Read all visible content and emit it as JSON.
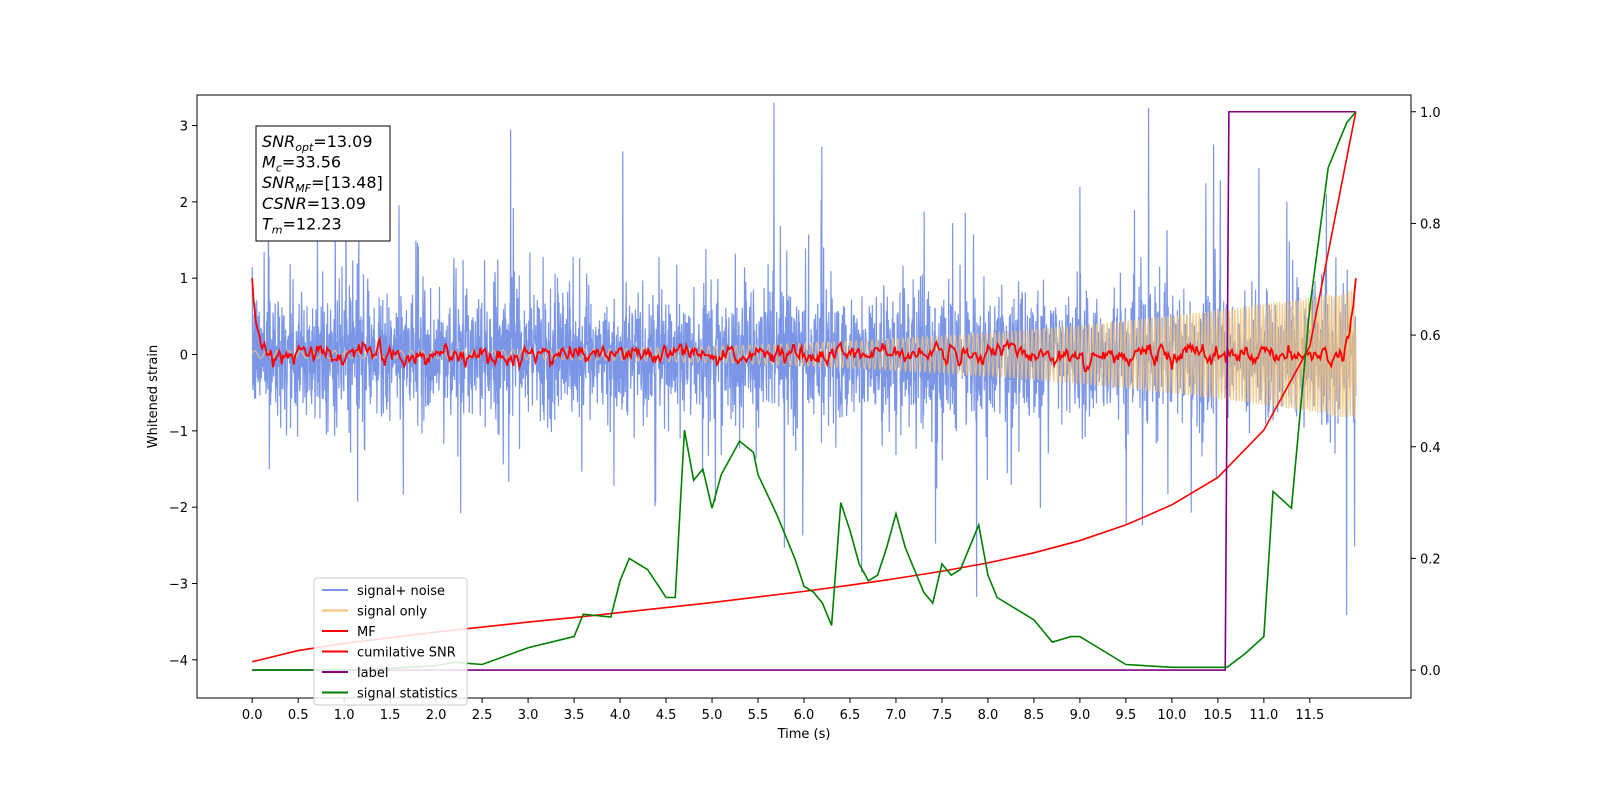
{
  "chart_data": {
    "type": "line",
    "xlabel": "Time (s)",
    "ylabel_left": "Whitened strain",
    "xlim": [
      -0.6,
      12.6
    ],
    "ylim_left": [
      -4.5,
      3.4
    ],
    "ylim_right": [
      -0.05,
      1.03
    ],
    "x_ticks": [
      0.0,
      0.5,
      1.0,
      1.5,
      2.0,
      2.5,
      3.0,
      3.5,
      4.0,
      4.5,
      5.0,
      5.5,
      6.0,
      6.5,
      7.0,
      7.5,
      8.0,
      8.5,
      9.0,
      9.5,
      10.0,
      10.5,
      11.0,
      11.5
    ],
    "x_tick_labels": [
      "0.0",
      "0.5",
      "1.0",
      "1.5",
      "2.0",
      "2.5",
      "3.0",
      "3.5",
      "4.0",
      "4.5",
      "5.0",
      "5.5",
      "6.0",
      "6.5",
      "7.0",
      "7.5",
      "8.0",
      "8.5",
      "9.0",
      "9.5",
      "10.0",
      "10.5",
      "11.0",
      "11.5"
    ],
    "y_left_ticks": [
      -4,
      -3,
      -2,
      -1,
      0,
      1,
      2,
      3
    ],
    "y_left_tick_labels": [
      "−4",
      "−3",
      "−2",
      "−1",
      "0",
      "1",
      "2",
      "3"
    ],
    "y_right_ticks": [
      0.0,
      0.2,
      0.4,
      0.6,
      0.8,
      1.0
    ],
    "y_right_tick_labels": [
      "0.0",
      "0.2",
      "0.4",
      "0.6",
      "0.8",
      "1.0"
    ],
    "legend_position": "lower-left",
    "annotation": {
      "lines": [
        {
          "base": "SNR",
          "sub": "opt",
          "value": "=13.09"
        },
        {
          "base": "M",
          "sub": "c",
          "value": "=33.56"
        },
        {
          "base": "SNR",
          "sub": "MF",
          "value": "=[13.48]"
        },
        {
          "base": "CSNR",
          "sub": "",
          "value": "=13.09"
        },
        {
          "base": "T",
          "sub": "m",
          "value": "=12.23"
        }
      ]
    },
    "series": [
      {
        "name": "signal+ noise",
        "color": "#7b96e6",
        "axis": "left",
        "style": "noise",
        "x_range": [
          0.0,
          12.0
        ],
        "std": 0.75,
        "ylim_observed": [
          -4.15,
          3.3
        ]
      },
      {
        "name": "signal only",
        "color": "#f3c37a",
        "axis": "left",
        "style": "chirp",
        "x_range": [
          0.0,
          12.0
        ],
        "amplitude_start": 0.05,
        "amplitude_end": 0.85
      },
      {
        "name": "MF",
        "color": "#ff0000",
        "axis": "left",
        "style": "fluctuation",
        "x_range": [
          0.0,
          12.0
        ],
        "start": 1.0,
        "end": 1.0,
        "level": 0.0,
        "std": 0.05
      },
      {
        "name": "cumilative SNR",
        "color": "#ff0000",
        "axis": "right",
        "x": [
          0.0,
          0.5,
          1.0,
          1.5,
          2.0,
          2.5,
          3.0,
          3.5,
          4.0,
          4.5,
          5.0,
          5.5,
          6.0,
          6.5,
          7.0,
          7.5,
          8.0,
          8.5,
          9.0,
          9.5,
          10.0,
          10.5,
          11.0,
          11.5,
          12.0
        ],
        "y": [
          0.015,
          0.035,
          0.048,
          0.058,
          0.068,
          0.077,
          0.086,
          0.094,
          0.103,
          0.112,
          0.121,
          0.131,
          0.141,
          0.152,
          0.164,
          0.177,
          0.192,
          0.21,
          0.232,
          0.26,
          0.296,
          0.345,
          0.43,
          0.58,
          1.0
        ]
      },
      {
        "name": "label",
        "color": "#800080",
        "axis": "right",
        "x": [
          0.0,
          10.58,
          10.62,
          12.0
        ],
        "y": [
          0.0,
          0.0,
          1.0,
          1.0
        ]
      },
      {
        "name": "signal statistics",
        "color": "#008000",
        "axis": "right",
        "x": [
          0.0,
          0.5,
          1.0,
          1.5,
          2.0,
          2.2,
          2.5,
          3.0,
          3.5,
          3.6,
          3.9,
          4.0,
          4.1,
          4.3,
          4.5,
          4.6,
          4.7,
          4.8,
          4.9,
          5.0,
          5.1,
          5.2,
          5.3,
          5.45,
          5.5,
          5.7,
          5.9,
          6.0,
          6.1,
          6.2,
          6.3,
          6.4,
          6.5,
          6.6,
          6.7,
          6.8,
          6.9,
          7.0,
          7.1,
          7.3,
          7.4,
          7.5,
          7.6,
          7.7,
          7.9,
          8.0,
          8.1,
          8.3,
          8.5,
          8.7,
          8.9,
          9.0,
          9.2,
          9.5,
          10.0,
          10.3,
          10.6,
          10.8,
          11.0,
          11.1,
          11.3,
          11.5,
          11.7,
          11.9,
          12.0
        ],
        "y": [
          0.0,
          0.0,
          0.0,
          0.003,
          0.008,
          0.014,
          0.01,
          0.04,
          0.06,
          0.1,
          0.095,
          0.16,
          0.2,
          0.18,
          0.13,
          0.13,
          0.43,
          0.34,
          0.36,
          0.29,
          0.35,
          0.38,
          0.41,
          0.39,
          0.35,
          0.28,
          0.2,
          0.15,
          0.14,
          0.12,
          0.08,
          0.3,
          0.25,
          0.19,
          0.16,
          0.17,
          0.22,
          0.28,
          0.22,
          0.14,
          0.12,
          0.19,
          0.17,
          0.18,
          0.26,
          0.17,
          0.13,
          0.11,
          0.09,
          0.05,
          0.06,
          0.06,
          0.04,
          0.01,
          0.005,
          0.005,
          0.005,
          0.03,
          0.06,
          0.32,
          0.29,
          0.65,
          0.9,
          0.98,
          1.0
        ]
      }
    ]
  }
}
